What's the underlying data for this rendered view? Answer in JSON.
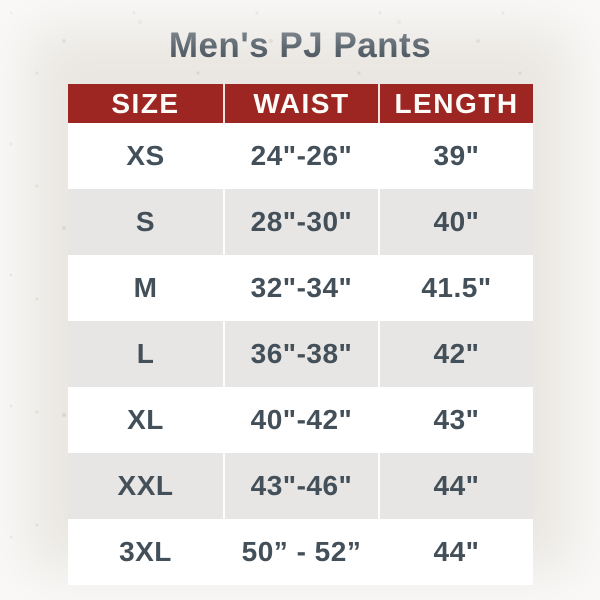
{
  "title": "Men's PJ Pants",
  "colors": {
    "page_bg": "#EAE7E2",
    "header_bg": "#9D2522",
    "header_text": "#FDFBF7",
    "title_color": "#3D4953",
    "cell_text": "#434F59",
    "row_bg": "#FFFFFF",
    "row_alt_bg": "#E7E6E4"
  },
  "table": {
    "headers": [
      "SIZE",
      "WAIST",
      "LENGTH"
    ],
    "rows": [
      {
        "size": "XS",
        "waist": "24\"-26\"",
        "length": "39\""
      },
      {
        "size": "S",
        "waist": "28\"-30\"",
        "length": "40\""
      },
      {
        "size": "M",
        "waist": "32\"-34\"",
        "length": "41.5\""
      },
      {
        "size": "L",
        "waist": "36\"-38\"",
        "length": "42\""
      },
      {
        "size": "XL",
        "waist": "40\"-42\"",
        "length": "43\""
      },
      {
        "size": "XXL",
        "waist": "43\"-46\"",
        "length": "44\""
      },
      {
        "size": "3XL",
        "waist": "50” - 52”",
        "length": "44\""
      }
    ]
  },
  "chart_data": {
    "type": "table",
    "title": "Men's PJ Pants",
    "columns": [
      "SIZE",
      "WAIST",
      "LENGTH"
    ],
    "rows": [
      [
        "XS",
        "24\"-26\"",
        "39\""
      ],
      [
        "S",
        "28\"-30\"",
        "40\""
      ],
      [
        "M",
        "32\"-34\"",
        "41.5\""
      ],
      [
        "L",
        "36\"-38\"",
        "42\""
      ],
      [
        "XL",
        "40\"-42\"",
        "43\""
      ],
      [
        "XXL",
        "43\"-46\"",
        "44\""
      ],
      [
        "3XL",
        "50” - 52”",
        "44\""
      ]
    ],
    "layout_hints": {
      "header_style": "dark-red background, white uppercase bold text",
      "row_striping": "white / light-gray alternating starting with white",
      "alignment": "all cells centered"
    }
  }
}
